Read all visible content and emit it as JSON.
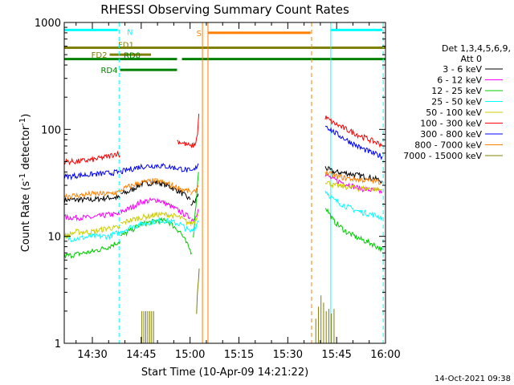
{
  "chart_data": {
    "type": "line",
    "title": "RHESSI Observing Summary Count Rates",
    "xlabel": "Start Time (10-Apr-09 14:21:22)",
    "ylabel_parts": [
      "Count Rate (s",
      "-1",
      " detector",
      "-1",
      ")"
    ],
    "y_scale": "log",
    "ylim": [
      1,
      1000
    ],
    "xlim_minutes": [
      21.37,
      120
    ],
    "x_ticks": [
      {
        "value": 30,
        "label": "14:30"
      },
      {
        "value": 45,
        "label": "14:45"
      },
      {
        "value": 60,
        "label": "15:00"
      },
      {
        "value": 75,
        "label": "15:15"
      },
      {
        "value": 90,
        "label": "15:30"
      },
      {
        "value": 105,
        "label": "15:45"
      },
      {
        "value": 120,
        "label": "16:00"
      }
    ],
    "y_ticks": [
      {
        "value": 1,
        "label": "1"
      },
      {
        "value": 10,
        "label": "10"
      },
      {
        "value": 100,
        "label": "100"
      },
      {
        "value": 1000,
        "label": "1000"
      }
    ],
    "legend_header": [
      "Det 1,3,4,5,6,9,",
      "Att 0"
    ],
    "legend_position": "right",
    "series": [
      {
        "name": "3 - 6 keV",
        "color": "#000000",
        "segments": [
          {
            "x": [
              21.5,
              25,
              30,
              35,
              38.5
            ],
            "y": [
              22,
              22,
              22,
              23,
              23
            ]
          },
          {
            "x": [
              38.7,
              41,
              45,
              50,
              53,
              57,
              60
            ],
            "y": [
              25,
              26,
              31,
              32,
              30,
              26,
              22
            ]
          },
          {
            "x": [
              60.2,
              61.5,
              62.5
            ],
            "y": [
              20,
              21,
              25
            ]
          },
          {
            "x": [
              101.5,
              104,
              108,
              112,
              116,
              119
            ],
            "y": [
              44,
              40,
              39,
              37,
              35,
              33
            ]
          }
        ]
      },
      {
        "name": "6 - 12 keV",
        "color": "#ff00ff",
        "segments": [
          {
            "x": [
              21.5,
              25,
              30,
              35,
              38.5
            ],
            "y": [
              15,
              15,
              15,
              16,
              16
            ]
          },
          {
            "x": [
              38.7,
              41,
              45,
              50,
              53,
              57,
              60
            ],
            "y": [
              17,
              18,
              21,
              22,
              20,
              17,
              15
            ]
          },
          {
            "x": [
              60.2,
              61.5,
              62.5
            ],
            "y": [
              14,
              15,
              18
            ]
          },
          {
            "x": [
              101.5,
              104,
              108,
              112,
              116,
              119
            ],
            "y": [
              38,
              34,
              31,
              28,
              27,
              26
            ]
          }
        ]
      },
      {
        "name": "12 - 25 keV",
        "color": "#00cc00",
        "segments": [
          {
            "x": [
              21.5,
              25,
              30,
              35,
              38.5
            ],
            "y": [
              6.5,
              6.8,
              7.2,
              8,
              9
            ]
          },
          {
            "x": [
              38.7,
              41,
              45,
              50,
              53,
              57,
              59,
              60.5
            ],
            "y": [
              10,
              11,
              13,
              14,
              14,
              11,
              8.5,
              7
            ]
          },
          {
            "x": [
              61,
              61.8,
              62.6
            ],
            "y": [
              10,
              20,
              40
            ]
          },
          {
            "x": [
              101.5,
              104,
              108,
              112,
              116,
              119
            ],
            "y": [
              19,
              14,
              11,
              9.5,
              8.5,
              7.5
            ]
          }
        ]
      },
      {
        "name": "25 - 50 keV",
        "color": "#00ffff",
        "segments": [
          {
            "x": [
              21.5,
              25,
              30,
              35,
              38.5
            ],
            "y": [
              9.5,
              9.5,
              10,
              10,
              11
            ]
          },
          {
            "x": [
              38.7,
              41,
              45,
              50,
              53,
              57,
              60
            ],
            "y": [
              11,
              12,
              13,
              14,
              14,
              13,
              11
            ]
          },
          {
            "x": [
              60.2,
              61.5,
              62.5
            ],
            "y": [
              11,
              12,
              14
            ]
          },
          {
            "x": [
              101.5,
              104,
              108,
              112,
              116,
              119
            ],
            "y": [
              27,
              22,
              19,
              17,
              16,
              15
            ]
          }
        ]
      },
      {
        "name": "50 - 100 keV",
        "color": "#cccc00",
        "segments": [
          {
            "x": [
              21.5,
              25,
              30,
              35,
              38.5
            ],
            "y": [
              10,
              11,
              11,
              12,
              12
            ]
          },
          {
            "x": [
              38.7,
              41,
              45,
              50,
              53,
              57,
              60
            ],
            "y": [
              13,
              14,
              15,
              16,
              16,
              15,
              13
            ]
          },
          {
            "x": [
              60.2,
              61.5,
              62.5
            ],
            "y": [
              13,
              14,
              16
            ]
          },
          {
            "x": [
              101.5,
              104,
              108,
              112,
              116,
              119
            ],
            "y": [
              33,
              30,
              29,
              28,
              28,
              27
            ]
          }
        ]
      },
      {
        "name": "100 - 300 keV",
        "color": "#ff0000",
        "segments": [
          {
            "x": [
              21.5,
              25,
              30,
              35,
              37.5,
              38.5
            ],
            "y": [
              50,
              50,
              52,
              56,
              60,
              57
            ]
          },
          {
            "x": [
              56,
              58,
              60
            ],
            "y": [
              78,
              74,
              70
            ]
          },
          {
            "x": [
              60.2,
              61.5,
              62.3,
              62.7
            ],
            "y": [
              70,
              72,
              90,
              140
            ]
          },
          {
            "x": [
              101.5,
              104,
              108,
              112,
              116,
              119
            ],
            "y": [
              130,
              115,
              100,
              88,
              78,
              72
            ]
          }
        ]
      },
      {
        "name": "300 - 800 keV",
        "color": "#0000ff",
        "segments": [
          {
            "x": [
              21.5,
              25,
              30,
              35,
              38.5
            ],
            "y": [
              36,
              37,
              38,
              39,
              40
            ]
          },
          {
            "x": [
              38.7,
              41,
              45,
              50,
              53,
              57,
              60
            ],
            "y": [
              40,
              42,
              45,
              46,
              45,
              43,
              41
            ]
          },
          {
            "x": [
              60.2,
              61.5,
              62.5
            ],
            "y": [
              40,
              42,
              48
            ]
          },
          {
            "x": [
              101.5,
              104,
              108,
              112,
              116,
              119
            ],
            "y": [
              110,
              95,
              80,
              68,
              60,
              56
            ]
          }
        ]
      },
      {
        "name": "800 - 7000 keV",
        "color": "#ff8000",
        "segments": [
          {
            "x": [
              21.5,
              25,
              30,
              35,
              38.5
            ],
            "y": [
              24,
              24,
              25,
              25,
              26
            ]
          },
          {
            "x": [
              38.7,
              41,
              45,
              50,
              53,
              57,
              60
            ],
            "y": [
              27,
              29,
              32,
              33,
              31,
              28,
              26
            ]
          },
          {
            "x": [
              60.2,
              61.5,
              62.5
            ],
            "y": [
              25,
              26,
              30
            ]
          },
          {
            "x": [
              101.5,
              104,
              108,
              112,
              116,
              119
            ],
            "y": [
              40,
              37,
              35,
              34,
              33,
              32
            ]
          }
        ]
      },
      {
        "name": "7000 - 15000 keV",
        "color": "#808000",
        "segments": [
          {
            "x": [
              62,
              62.4,
              62.8
            ],
            "y": [
              2,
              3.5,
              5
            ]
          }
        ]
      }
    ],
    "spikes_7000_15000": [
      {
        "x": 45.2,
        "y": 2
      },
      {
        "x": 45.8,
        "y": 2
      },
      {
        "x": 46.4,
        "y": 2
      },
      {
        "x": 47.0,
        "y": 2
      },
      {
        "x": 47.6,
        "y": 2
      },
      {
        "x": 48.2,
        "y": 2
      },
      {
        "x": 48.8,
        "y": 2
      },
      {
        "x": 98.6,
        "y": 1.7
      },
      {
        "x": 99.4,
        "y": 2.2
      },
      {
        "x": 100.2,
        "y": 2.8
      },
      {
        "x": 101.0,
        "y": 2.4
      },
      {
        "x": 101.8,
        "y": 2.0
      },
      {
        "x": 102.6,
        "y": 2.1
      },
      {
        "x": 103.4,
        "y": 1.9
      },
      {
        "x": 104.2,
        "y": 2.1
      }
    ],
    "flag_bars": [
      {
        "label": "N",
        "color": "#00ffff",
        "y": 850,
        "segments": [
          [
            21.37,
            37.8
          ],
          [
            103.2,
            119
          ]
        ]
      },
      {
        "label": "S",
        "color": "#ff8000",
        "y": 800,
        "segments": [
          [
            65.5,
            97
          ]
        ]
      },
      {
        "label": "FD1",
        "color": "#808000",
        "y": 580,
        "segments": [
          [
            21.37,
            120
          ]
        ]
      },
      {
        "label": "FD2",
        "color": "#808000",
        "y": 500,
        "segments": [
          [
            35.3,
            48
          ]
        ]
      },
      {
        "label": "RD0",
        "color": "#008000",
        "y": 455,
        "segments": [
          [
            21.37,
            56
          ],
          [
            57.5,
            120
          ]
        ]
      },
      {
        "label": "RD4",
        "color": "#008000",
        "y": 360,
        "segments": [
          [
            38.5,
            56
          ]
        ]
      }
    ],
    "vlines": [
      {
        "x": 21.37,
        "color": "#00ffff",
        "style": "solid"
      },
      {
        "x": 38.2,
        "color": "#00ffff",
        "style": "dashed"
      },
      {
        "x": 63.8,
        "color": "#ff8000",
        "style": "solid"
      },
      {
        "x": 65.5,
        "color": "#ff8000",
        "style": "solid"
      },
      {
        "x": 97.3,
        "color": "#ff8000",
        "style": "dashed"
      },
      {
        "x": 103.2,
        "color": "#00ffff",
        "style": "solid"
      },
      {
        "x": 119.3,
        "color": "#00ffff",
        "style": "dashed"
      }
    ],
    "timestamp": "14-Oct-2021 09:38"
  }
}
